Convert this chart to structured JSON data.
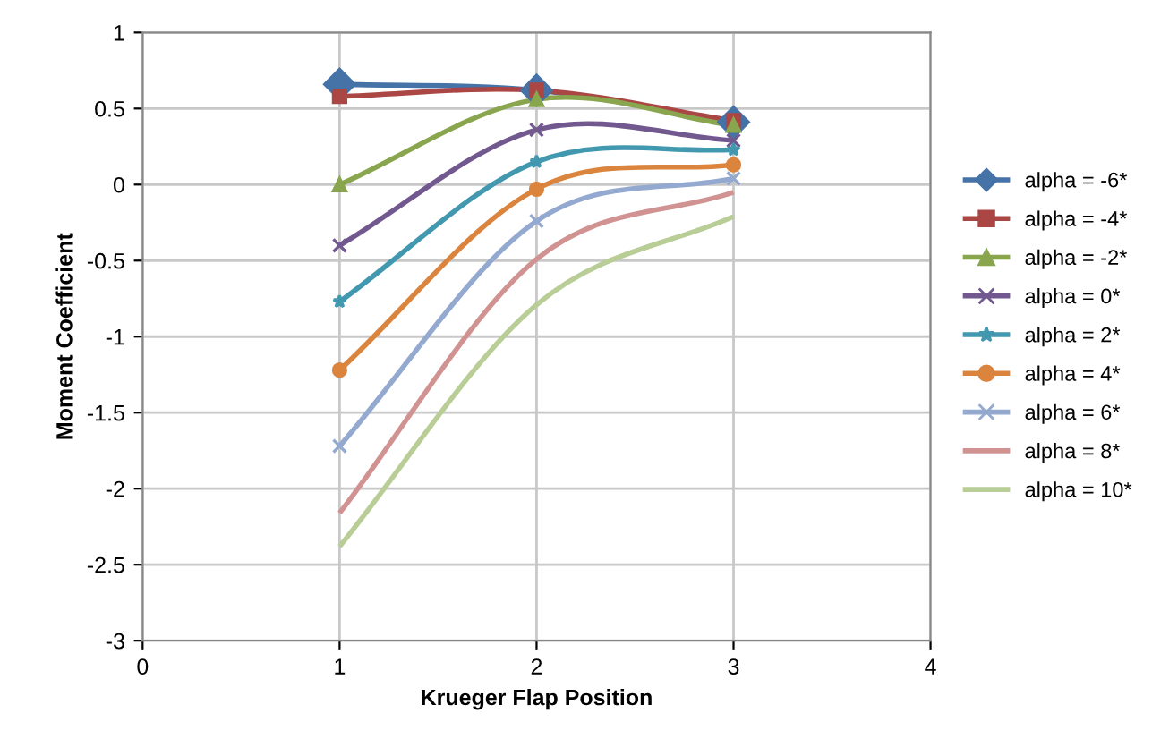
{
  "chart_data": {
    "type": "line",
    "xlabel": "Krueger Flap Position",
    "ylabel": "Moment Coefficient",
    "x": [
      1,
      2,
      3
    ],
    "xlim": [
      0,
      4
    ],
    "xticks": [
      0,
      1,
      2,
      3,
      4
    ],
    "ylim": [
      -3,
      1
    ],
    "yticks": [
      -3,
      -2.5,
      -2,
      -1.5,
      -1,
      -0.5,
      0,
      0.5,
      1
    ],
    "grid": true,
    "legend": "right",
    "line_style": "solid",
    "series": [
      {
        "name": "alpha = -6*",
        "color": "#4572a7",
        "marker": "diamond",
        "values": [
          0.66,
          0.62,
          0.41
        ]
      },
      {
        "name": "alpha = -4*",
        "color": "#aa4643",
        "marker": "square",
        "values": [
          0.58,
          0.62,
          0.42
        ]
      },
      {
        "name": "alpha = -2*",
        "color": "#89a54e",
        "marker": "triangle",
        "values": [
          0.0,
          0.56,
          0.39
        ]
      },
      {
        "name": "alpha = 0*",
        "color": "#71588f",
        "marker": "cross",
        "values": [
          -0.4,
          0.36,
          0.29
        ]
      },
      {
        "name": "alpha = 2*",
        "color": "#4198af",
        "marker": "star",
        "values": [
          -0.77,
          0.15,
          0.23
        ]
      },
      {
        "name": "alpha = 4*",
        "color": "#db843d",
        "marker": "circle",
        "values": [
          -1.22,
          -0.03,
          0.13
        ]
      },
      {
        "name": "alpha = 6*",
        "color": "#93a9cf",
        "marker": "cross",
        "values": [
          -1.72,
          -0.24,
          0.04
        ]
      },
      {
        "name": "alpha = 8*",
        "color": "#d19392",
        "marker": "none",
        "values": [
          -2.16,
          -0.49,
          -0.05
        ]
      },
      {
        "name": "alpha = 10*",
        "color": "#b9cd96",
        "marker": "none",
        "values": [
          -2.38,
          -0.79,
          -0.21
        ]
      }
    ]
  }
}
